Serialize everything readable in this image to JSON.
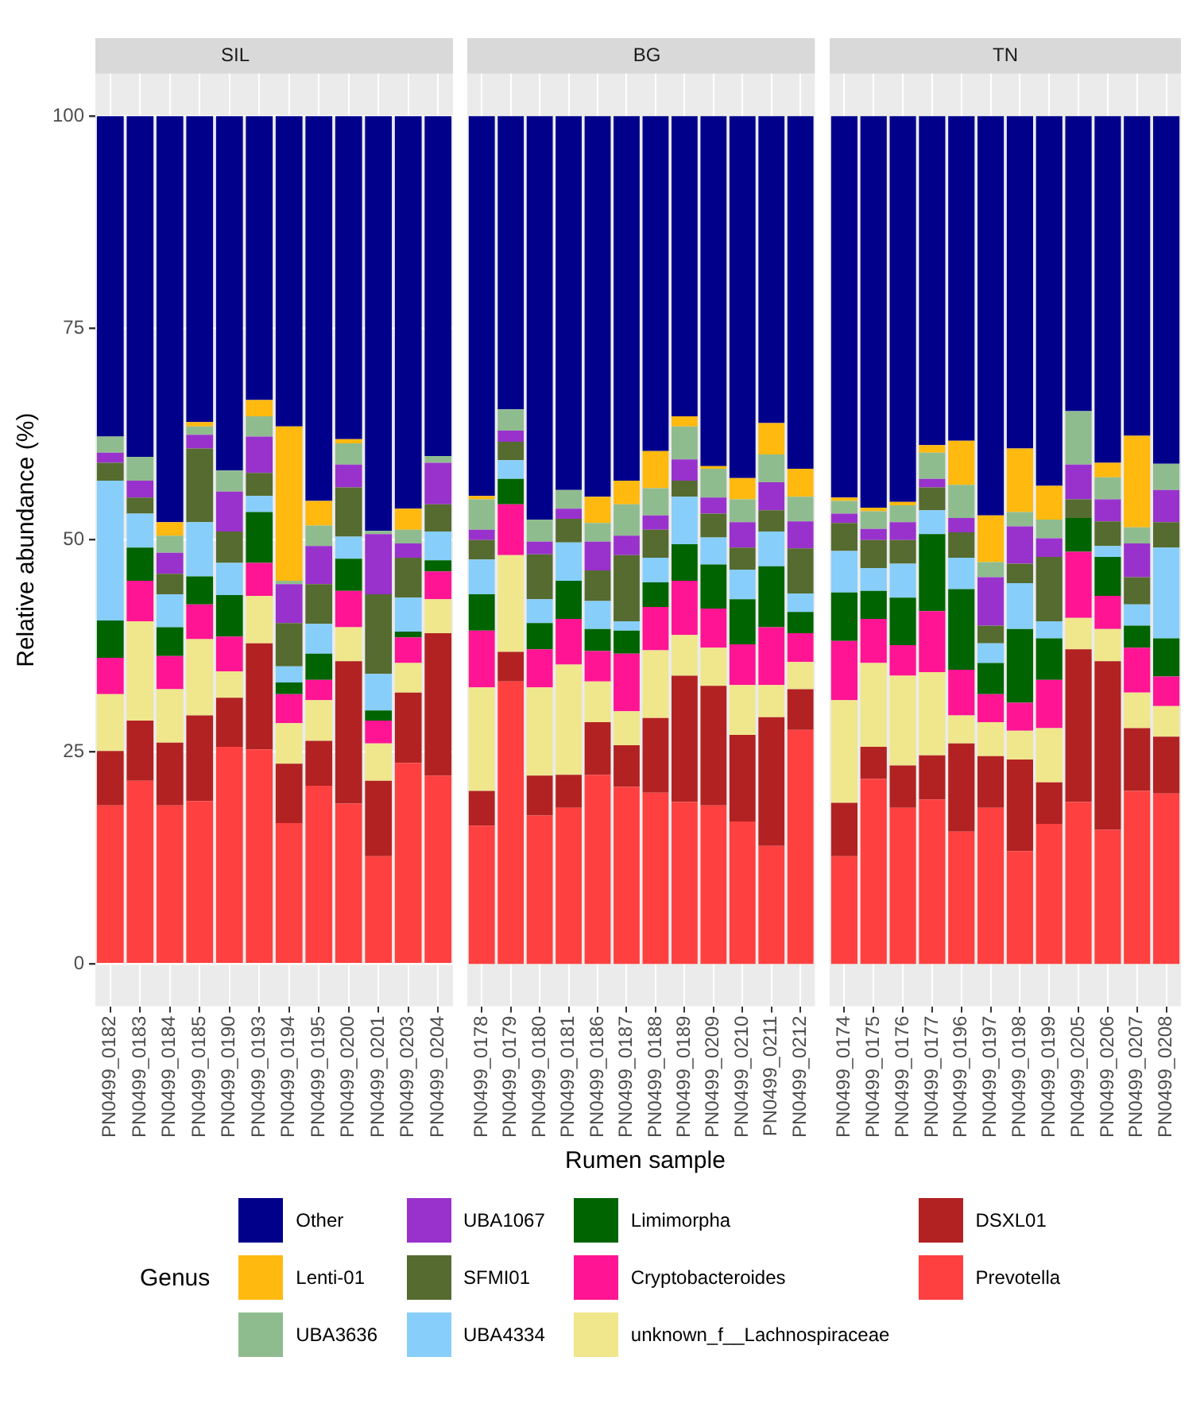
{
  "chart_data": [
    {
      "type": "bar",
      "title": "SIL",
      "ylabel": "Relative abundance (%)",
      "stacked": true,
      "grid": true,
      "legend": "bottom",
      "legend_title": "Genus",
      "ylim": [
        -5,
        105
      ],
      "yticks": [
        0,
        25,
        50,
        75,
        100
      ],
      "categories": [
        "PN0499_0182",
        "PN0499_0183",
        "PN0499_0184",
        "PN0499_0185",
        "PN0499_0190",
        "PN0499_0193",
        "PN0499_0194",
        "PN0499_0195",
        "PN0499_0200",
        "PN0499_0201",
        "PN0499_0203",
        "PN0499_0204"
      ],
      "series": [
        {
          "name": "Prevotella",
          "color": "#ff4040",
          "values": [
            18.7,
            21.6,
            18.7,
            19.2,
            25.6,
            25.3,
            16.6,
            21.0,
            18.9,
            12.7,
            23.7,
            22.2
          ]
        },
        {
          "name": "DSXL01",
          "color": "#b22222",
          "values": [
            6.4,
            7.1,
            7.4,
            10.1,
            5.8,
            12.5,
            7.0,
            5.3,
            16.8,
            8.9,
            8.3,
            16.8
          ]
        },
        {
          "name": "unknown_f__Lachnospiraceae",
          "color": "#f0e68c",
          "values": [
            6.7,
            11.7,
            6.3,
            9.0,
            3.1,
            5.6,
            4.8,
            4.8,
            4.0,
            4.4,
            3.5,
            4.0
          ]
        },
        {
          "name": "Cryptobacteroides",
          "color": "#ff1493",
          "values": [
            4.3,
            4.8,
            3.9,
            4.1,
            4.1,
            3.9,
            3.4,
            2.4,
            4.3,
            2.7,
            3.0,
            3.3
          ]
        },
        {
          "name": "Limimorpha",
          "color": "#006400",
          "values": [
            4.4,
            3.9,
            3.4,
            3.3,
            4.9,
            6.0,
            1.4,
            3.1,
            3.8,
            1.2,
            0.7,
            1.3
          ]
        },
        {
          "name": "UBA4334",
          "color": "#87cefa",
          "values": [
            16.5,
            4.0,
            3.9,
            6.4,
            3.8,
            1.9,
            1.9,
            3.5,
            2.6,
            4.3,
            4.0,
            3.4
          ]
        },
        {
          "name": "SFMI01",
          "color": "#556b2f",
          "values": [
            2.1,
            1.9,
            2.4,
            8.7,
            3.7,
            2.7,
            5.1,
            4.7,
            5.8,
            9.4,
            4.7,
            3.2
          ]
        },
        {
          "name": "UBA1067",
          "color": "#9932cc",
          "values": [
            1.2,
            2.0,
            2.5,
            1.6,
            4.7,
            4.3,
            4.6,
            4.5,
            2.7,
            7.1,
            1.7,
            4.9
          ]
        },
        {
          "name": "UBA3636",
          "color": "#8fbc8f",
          "values": [
            1.9,
            2.8,
            2.0,
            1.0,
            2.5,
            2.4,
            0.4,
            2.4,
            2.5,
            0.4,
            1.6,
            0.8
          ]
        },
        {
          "name": "Lenti-01",
          "color": "#ffb90f",
          "values": [
            0,
            0,
            1.6,
            0.5,
            0,
            1.9,
            18.2,
            2.9,
            0.5,
            0,
            2.5,
            0
          ]
        },
        {
          "name": "Other",
          "color": "#00008b",
          "values": [
            37.8,
            40.2,
            47.9,
            36.1,
            41.8,
            33.5,
            36.6,
            45.4,
            38.1,
            48.9,
            46.3,
            40.1
          ]
        }
      ]
    },
    {
      "type": "bar",
      "title": "BG",
      "xlabel": "Rumen sample",
      "stacked": true,
      "grid": true,
      "tick_labels": "x",
      "ylim": [
        -5,
        105
      ],
      "categories": [
        "PN0499_0178",
        "PN0499_0179",
        "PN0499_0180",
        "PN0499_0181",
        "PN0499_0186",
        "PN0499_0187",
        "PN0499_0188",
        "PN0499_0189",
        "PN0499_0209",
        "PN0499_0210",
        "PN0499_0211",
        "PN0499_0212"
      ],
      "series": [
        {
          "color": "#ff4040",
          "values": [
            16.3,
            33.3,
            17.5,
            18.4,
            22.3,
            20.9,
            20.2,
            19.1,
            18.7,
            16.8,
            13.9,
            27.6
          ]
        },
        {
          "color": "#b22222",
          "values": [
            4.1,
            3.5,
            4.7,
            3.9,
            6.2,
            4.9,
            8.8,
            14.9,
            14.1,
            10.2,
            15.2,
            4.8
          ]
        },
        {
          "color": "#f0e68c",
          "values": [
            12.2,
            11.4,
            10.4,
            13.0,
            4.8,
            4.0,
            8.0,
            4.8,
            4.5,
            5.9,
            3.8,
            3.2
          ]
        },
        {
          "color": "#ff1493",
          "values": [
            6.7,
            6.0,
            4.5,
            5.4,
            3.6,
            6.8,
            5.1,
            6.4,
            4.6,
            4.8,
            6.8,
            3.4
          ]
        },
        {
          "color": "#006400",
          "values": [
            4.3,
            3.0,
            3.1,
            4.5,
            2.6,
            2.7,
            2.9,
            4.3,
            5.2,
            5.3,
            7.2,
            2.5
          ]
        },
        {
          "color": "#87cefa",
          "values": [
            4.1,
            2.2,
            2.8,
            4.5,
            3.3,
            1.1,
            2.9,
            5.6,
            3.2,
            3.5,
            4.1,
            2.2
          ]
        },
        {
          "color": "#556b2f",
          "values": [
            2.3,
            2.2,
            5.3,
            2.8,
            3.6,
            7.8,
            3.3,
            1.9,
            2.8,
            2.6,
            2.5,
            5.3
          ]
        },
        {
          "color": "#9932cc",
          "values": [
            1.2,
            1.3,
            1.5,
            1.2,
            3.4,
            2.3,
            1.7,
            2.5,
            1.9,
            3.0,
            3.3,
            3.2
          ]
        },
        {
          "color": "#8fbc8f",
          "values": [
            3.6,
            2.5,
            2.6,
            2.2,
            2.2,
            3.7,
            3.2,
            3.9,
            3.4,
            2.7,
            3.3,
            2.9
          ]
        },
        {
          "color": "#ffb90f",
          "values": [
            0.4,
            0,
            0,
            0,
            3.1,
            2.8,
            4.4,
            1.2,
            0.3,
            2.5,
            3.7,
            3.3
          ]
        },
        {
          "color": "#00008b",
          "values": [
            44.8,
            34.6,
            47.6,
            44.1,
            44.9,
            43.0,
            39.5,
            35.4,
            41.3,
            42.7,
            36.2,
            41.6
          ]
        }
      ]
    },
    {
      "type": "bar",
      "title": "TN",
      "stacked": true,
      "grid": true,
      "tick_labels": "x",
      "ylim": [
        -5,
        105
      ],
      "categories": [
        "PN0499_0174",
        "PN0499_0175",
        "PN0499_0176",
        "PN0499_0177",
        "PN0499_0196",
        "PN0499_0197",
        "PN0499_0198",
        "PN0499_0199",
        "PN0499_0205",
        "PN0499_0206",
        "PN0499_0207",
        "PN0499_0208"
      ],
      "series": [
        {
          "color": "#ff4040",
          "values": [
            12.7,
            21.8,
            18.4,
            19.4,
            15.6,
            18.4,
            13.3,
            16.5,
            19.1,
            15.8,
            20.4,
            20.1
          ]
        },
        {
          "color": "#b22222",
          "values": [
            6.3,
            3.8,
            5.0,
            5.2,
            10.4,
            6.1,
            10.8,
            4.9,
            18.0,
            19.9,
            7.4,
            6.7
          ]
        },
        {
          "color": "#f0e68c",
          "values": [
            12.1,
            9.9,
            10.6,
            9.8,
            3.3,
            4.0,
            3.4,
            6.4,
            3.7,
            3.8,
            4.2,
            3.6
          ]
        },
        {
          "color": "#ff1493",
          "values": [
            7.0,
            5.2,
            3.6,
            7.2,
            5.4,
            3.3,
            3.3,
            5.7,
            7.8,
            3.9,
            5.3,
            3.5
          ]
        },
        {
          "color": "#006400",
          "values": [
            5.7,
            3.3,
            5.6,
            9.1,
            9.5,
            3.7,
            8.7,
            4.9,
            4.0,
            4.6,
            2.6,
            4.5
          ]
        },
        {
          "color": "#87cefa",
          "values": [
            4.9,
            2.7,
            4.0,
            2.8,
            3.7,
            2.3,
            5.4,
            2.0,
            0,
            1.3,
            2.5,
            10.7
          ]
        },
        {
          "color": "#556b2f",
          "values": [
            3.3,
            3.3,
            2.8,
            2.7,
            3.0,
            2.1,
            2.3,
            7.6,
            2.2,
            2.9,
            3.2,
            3.0
          ]
        },
        {
          "color": "#9932cc",
          "values": [
            1.1,
            1.3,
            2.1,
            1.0,
            1.7,
            5.7,
            4.4,
            2.2,
            4.1,
            2.6,
            4.0,
            3.8
          ]
        },
        {
          "color": "#8fbc8f",
          "values": [
            1.5,
            2.1,
            2.0,
            3.1,
            3.9,
            1.8,
            1.7,
            2.2,
            6.3,
            2.6,
            1.9,
            3.1
          ]
        },
        {
          "color": "#ffb90f",
          "values": [
            0.4,
            0.4,
            0.4,
            0.9,
            5.2,
            5.5,
            7.5,
            4.0,
            0,
            1.7,
            10.8,
            0
          ]
        },
        {
          "color": "#00008b",
          "values": [
            45.0,
            46.2,
            45.5,
            38.8,
            38.3,
            47.1,
            39.2,
            43.6,
            34.8,
            40.9,
            37.7,
            41.0
          ]
        }
      ]
    }
  ]
}
